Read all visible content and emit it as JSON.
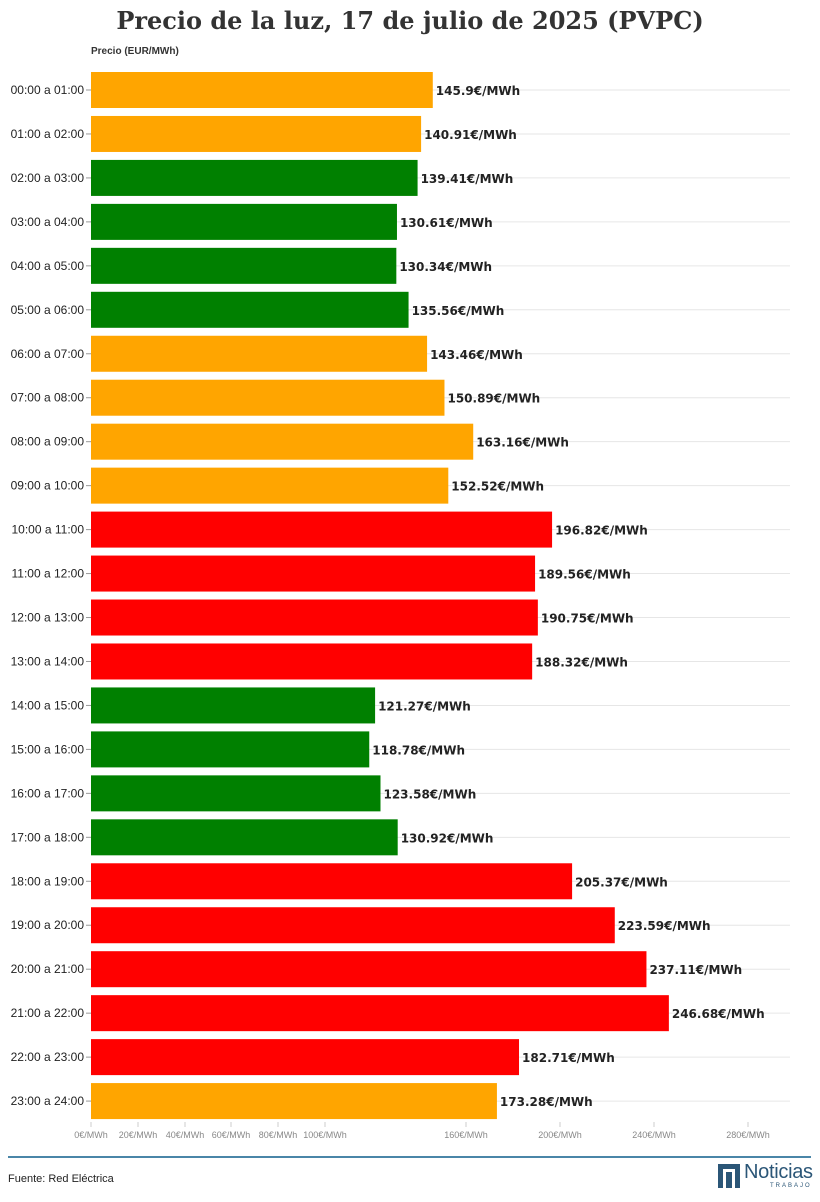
{
  "chart_data": {
    "type": "bar",
    "orientation": "horizontal",
    "title": "Precio de la luz, 17 de julio de 2025 (PVPC)",
    "ylabel": "Precio (EUR/MWh)",
    "categories": [
      "00:00 a 01:00",
      "01:00 a 02:00",
      "02:00 a 03:00",
      "03:00 a 04:00",
      "04:00 a 05:00",
      "05:00 a 06:00",
      "06:00 a 07:00",
      "07:00 a 08:00",
      "08:00 a 09:00",
      "09:00 a 10:00",
      "10:00 a 11:00",
      "11:00 a 12:00",
      "12:00 a 13:00",
      "13:00 a 14:00",
      "14:00 a 15:00",
      "15:00 a 16:00",
      "16:00 a 17:00",
      "17:00 a 18:00",
      "18:00 a 19:00",
      "19:00 a 20:00",
      "20:00 a 21:00",
      "21:00 a 22:00",
      "22:00 a 23:00",
      "23:00 a 24:00"
    ],
    "values": [
      145.9,
      140.91,
      139.41,
      130.61,
      130.34,
      135.56,
      143.46,
      150.89,
      163.16,
      152.52,
      196.82,
      189.56,
      190.75,
      188.32,
      121.27,
      118.78,
      123.58,
      130.92,
      205.37,
      223.59,
      237.11,
      246.68,
      182.71,
      173.28
    ],
    "value_labels": [
      "145.9€/MWh",
      "140.91€/MWh",
      "139.41€/MWh",
      "130.61€/MWh",
      "130.34€/MWh",
      "135.56€/MWh",
      "143.46€/MWh",
      "150.89€/MWh",
      "163.16€/MWh",
      "152.52€/MWh",
      "196.82€/MWh",
      "189.56€/MWh",
      "190.75€/MWh",
      "188.32€/MWh",
      "121.27€/MWh",
      "118.78€/MWh",
      "123.58€/MWh",
      "130.92€/MWh",
      "205.37€/MWh",
      "223.59€/MWh",
      "237.11€/MWh",
      "246.68€/MWh",
      "182.71€/MWh",
      "173.28€/MWh"
    ],
    "bar_colors": [
      "#FFA500",
      "#FFA500",
      "#008000",
      "#008000",
      "#008000",
      "#008000",
      "#FFA500",
      "#FFA500",
      "#FFA500",
      "#FFA500",
      "#FF0000",
      "#FF0000",
      "#FF0000",
      "#FF0000",
      "#008000",
      "#008000",
      "#008000",
      "#008000",
      "#FF0000",
      "#FF0000",
      "#FF0000",
      "#FF0000",
      "#FF0000",
      "#FFA500"
    ],
    "x_ticks": [
      {
        "value": 0,
        "label": "0€/MWh"
      },
      {
        "value": 20,
        "label": "20€/MWh"
      },
      {
        "value": 40,
        "label": "40€/MWh"
      },
      {
        "value": 60,
        "label": "60€/MWh"
      },
      {
        "value": 80,
        "label": "80€/MWh"
      },
      {
        "value": 100,
        "label": "100€/MWh"
      },
      {
        "value": 160,
        "label": "160€/MWh"
      },
      {
        "value": 200,
        "label": "200€/MWh"
      },
      {
        "value": 240,
        "label": "240€/MWh"
      },
      {
        "value": 280,
        "label": "280€/MWh"
      }
    ],
    "x_range": [
      0,
      300
    ],
    "grid": true,
    "legend": "none"
  },
  "footer": {
    "source": "Fuente: Red Eléctrica",
    "logo_name": "Noticias",
    "logo_sub": "TRABAJO"
  },
  "colors": {
    "orange": "#FFA500",
    "green": "#008000",
    "red": "#FF0000",
    "brand": "#2b5677"
  }
}
